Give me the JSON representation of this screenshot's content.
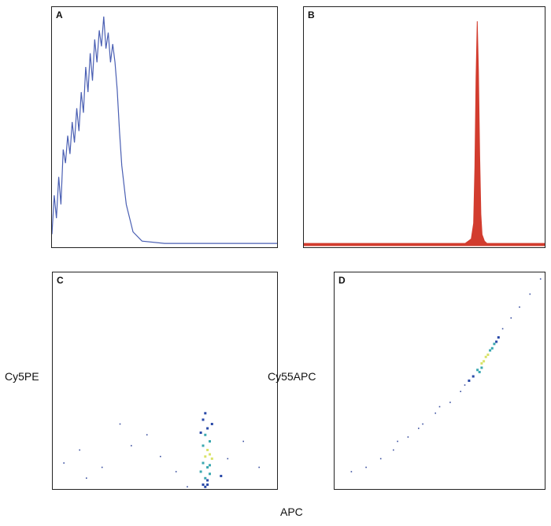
{
  "colors": {
    "histogram_a": "#4a5fb3",
    "histogram_b": "#d23c2e",
    "density_low": "#2a4aa8",
    "density_mid": "#3aa8b0",
    "density_high": "#d9e36a"
  },
  "chart_data": [
    {
      "type": "line",
      "panel": "A",
      "x": [
        0.0,
        0.01,
        0.02,
        0.03,
        0.04,
        0.05,
        0.06,
        0.07,
        0.08,
        0.09,
        0.1,
        0.11,
        0.12,
        0.13,
        0.14,
        0.15,
        0.16,
        0.17,
        0.18,
        0.19,
        0.2,
        0.21,
        0.22,
        0.23,
        0.24,
        0.25,
        0.26,
        0.27,
        0.28,
        0.29,
        0.3,
        0.31,
        0.33,
        0.36,
        0.4,
        0.5,
        0.6,
        0.7,
        0.8,
        0.9,
        1.0
      ],
      "y": [
        0.05,
        0.22,
        0.12,
        0.3,
        0.18,
        0.42,
        0.36,
        0.48,
        0.4,
        0.54,
        0.45,
        0.6,
        0.5,
        0.67,
        0.58,
        0.78,
        0.67,
        0.84,
        0.72,
        0.9,
        0.8,
        0.94,
        0.87,
        1.0,
        0.86,
        0.93,
        0.8,
        0.88,
        0.8,
        0.68,
        0.5,
        0.35,
        0.18,
        0.06,
        0.02,
        0.01,
        0.01,
        0.01,
        0.01,
        0.01,
        0.01
      ]
    },
    {
      "type": "area",
      "panel": "B",
      "x": [
        0.0,
        0.6,
        0.67,
        0.695,
        0.705,
        0.71,
        0.715,
        0.72,
        0.725,
        0.73,
        0.735,
        0.74,
        0.75,
        0.76,
        0.8,
        1.0
      ],
      "y": [
        0.01,
        0.01,
        0.01,
        0.03,
        0.1,
        0.35,
        0.75,
        1.0,
        0.78,
        0.4,
        0.14,
        0.05,
        0.02,
        0.01,
        0.01,
        0.01
      ]
    },
    {
      "type": "scatter",
      "panel": "C",
      "x": [
        0.66,
        0.67,
        0.67,
        0.68,
        0.68,
        0.68,
        0.69,
        0.69,
        0.69,
        0.7,
        0.7,
        0.71,
        0.66,
        0.71,
        0.67,
        0.7,
        0.68,
        0.69,
        0.7,
        0.67,
        0.68,
        0.69,
        0.05,
        0.12,
        0.22,
        0.35,
        0.48,
        0.55,
        0.78,
        0.85,
        0.3,
        0.42,
        0.15,
        0.6,
        0.92,
        0.75
      ],
      "y": [
        0.08,
        0.12,
        0.2,
        0.05,
        0.15,
        0.25,
        0.1,
        0.18,
        0.28,
        0.07,
        0.22,
        0.14,
        0.26,
        0.3,
        0.32,
        0.11,
        0.35,
        0.04,
        0.16,
        0.02,
        0.01,
        0.02,
        0.12,
        0.18,
        0.1,
        0.2,
        0.15,
        0.08,
        0.14,
        0.22,
        0.3,
        0.25,
        0.05,
        0.01,
        0.1,
        0.06
      ]
    },
    {
      "type": "scatter",
      "panel": "D",
      "x": [
        0.66,
        0.68,
        0.7,
        0.72,
        0.74,
        0.76,
        0.78,
        0.7,
        0.73,
        0.75,
        0.77,
        0.69,
        0.71,
        0.8,
        0.84,
        0.88,
        0.93,
        0.98,
        0.6,
        0.55,
        0.48,
        0.42,
        0.35,
        0.28,
        0.22,
        0.15,
        0.08,
        0.5,
        0.4,
        0.3,
        0.62,
        0.64
      ],
      "y": [
        0.52,
        0.55,
        0.58,
        0.61,
        0.64,
        0.67,
        0.7,
        0.56,
        0.62,
        0.65,
        0.68,
        0.54,
        0.59,
        0.74,
        0.79,
        0.84,
        0.9,
        0.97,
        0.45,
        0.4,
        0.35,
        0.3,
        0.24,
        0.18,
        0.14,
        0.1,
        0.08,
        0.38,
        0.28,
        0.22,
        0.48,
        0.5
      ]
    }
  ],
  "panels": [
    {
      "id": "A",
      "label": "A"
    },
    {
      "id": "B",
      "label": "B"
    },
    {
      "id": "C",
      "label": "C",
      "ylabel": "Cy5PE"
    },
    {
      "id": "D",
      "label": "D",
      "ylabel": "Cy55APC"
    }
  ],
  "xlabel": "APC"
}
